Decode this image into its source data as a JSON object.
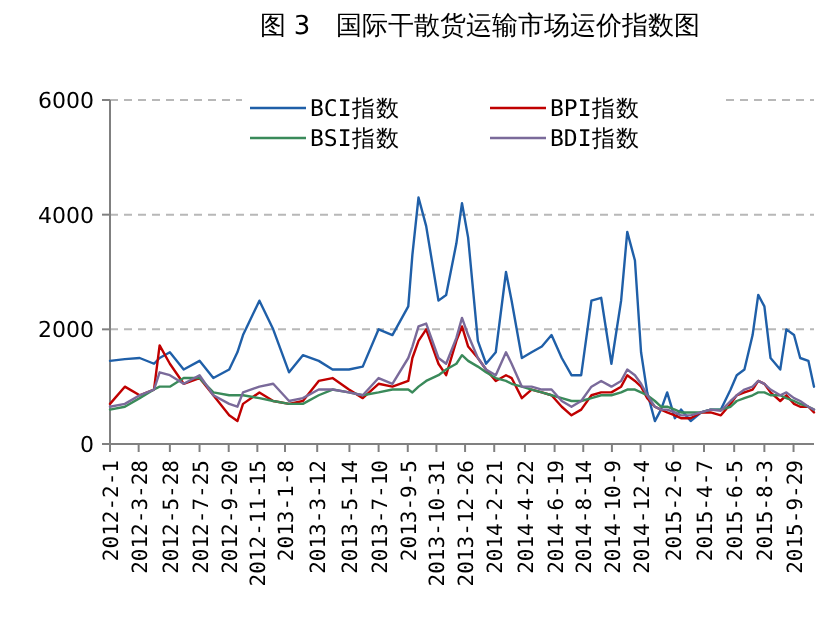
{
  "chart_data": {
    "type": "line",
    "title": "图 3　国际干散货运输市场运价指数图",
    "x": [
      "2012-02-01",
      "2012-03-01",
      "2012-03-30",
      "2012-04-27",
      "2012-05-08",
      "2012-05-28",
      "2012-06-24",
      "2012-07-25",
      "2012-08-21",
      "2012-09-21",
      "2012-10-07",
      "2012-10-18",
      "2012-11-19",
      "2012-12-16",
      "2013-01-16",
      "2013-02-12",
      "2013-03-15",
      "2013-04-11",
      "2013-05-13",
      "2013-06-09",
      "2013-07-10",
      "2013-08-06",
      "2013-09-06",
      "2013-09-14",
      "2013-09-26",
      "2013-10-11",
      "2013-11-04",
      "2013-11-19",
      "2013-12-09",
      "2013-12-20",
      "2014-01-01",
      "2014-01-20",
      "2014-02-05",
      "2014-02-24",
      "2014-03-16",
      "2014-03-27",
      "2014-04-16",
      "2014-05-05",
      "2014-05-25",
      "2014-06-13",
      "2014-07-03",
      "2014-07-22",
      "2014-08-10",
      "2014-08-30",
      "2014-09-18",
      "2014-10-08",
      "2014-10-27",
      "2014-11-08",
      "2014-11-23",
      "2014-12-05",
      "2014-12-17",
      "2015-01-01",
      "2015-01-13",
      "2015-01-25",
      "2015-02-09",
      "2015-02-21",
      "2015-03-12",
      "2015-04-01",
      "2015-04-20",
      "2015-05-10",
      "2015-05-29",
      "2015-06-10",
      "2015-06-25",
      "2015-07-11",
      "2015-07-22",
      "2015-08-03",
      "2015-08-15",
      "2015-09-03",
      "2015-09-15",
      "2015-09-30",
      "2015-10-12",
      "2015-10-28",
      "2015-11-08"
    ],
    "series": [
      {
        "name": "BCI指数",
        "color": "#1f5fa8",
        "values": [
          1450,
          1480,
          1500,
          1400,
          1500,
          1600,
          1300,
          1450,
          1150,
          1300,
          1600,
          1900,
          2500,
          2000,
          1250,
          1550,
          1450,
          1300,
          1300,
          1350,
          2000,
          1900,
          2400,
          3300,
          4300,
          3800,
          2500,
          2600,
          3500,
          4200,
          3600,
          1800,
          1400,
          1600,
          3000,
          2500,
          1500,
          1600,
          1700,
          1900,
          1500,
          1200,
          1200,
          2500,
          2550,
          1400,
          2500,
          3700,
          3200,
          1600,
          900,
          400,
          600,
          900,
          450,
          600,
          400,
          550,
          600,
          600,
          950,
          1200,
          1300,
          1900,
          2600,
          2400,
          1500,
          1300,
          2000,
          1900,
          1500,
          1450,
          1000
        ]
      },
      {
        "name": "BPI指数",
        "color": "#c00000",
        "values": [
          700,
          1000,
          850,
          950,
          1720,
          1400,
          1050,
          1150,
          850,
          500,
          400,
          700,
          900,
          750,
          700,
          750,
          1100,
          1150,
          950,
          800,
          1050,
          1000,
          1100,
          1500,
          1800,
          2000,
          1400,
          1200,
          1800,
          2050,
          1700,
          1500,
          1300,
          1100,
          1200,
          1150,
          800,
          950,
          900,
          850,
          650,
          500,
          600,
          850,
          900,
          900,
          1000,
          1200,
          1100,
          1000,
          800,
          650,
          600,
          550,
          500,
          450,
          450,
          550,
          550,
          500,
          700,
          850,
          900,
          950,
          1100,
          1050,
          900,
          750,
          850,
          700,
          650,
          650,
          550
        ]
      },
      {
        "name": "BSI指数",
        "color": "#3a8a5a",
        "values": [
          600,
          650,
          800,
          950,
          1000,
          1000,
          1150,
          1150,
          900,
          850,
          850,
          850,
          800,
          750,
          700,
          700,
          850,
          950,
          900,
          850,
          900,
          950,
          950,
          900,
          1000,
          1100,
          1200,
          1300,
          1400,
          1550,
          1450,
          1350,
          1250,
          1150,
          1100,
          1050,
          1000,
          950,
          900,
          850,
          800,
          750,
          750,
          800,
          850,
          850,
          900,
          950,
          950,
          900,
          850,
          750,
          650,
          650,
          600,
          550,
          550,
          550,
          600,
          600,
          650,
          750,
          800,
          850,
          900,
          900,
          850,
          850,
          800,
          750,
          700,
          650,
          600
        ]
      },
      {
        "name": "BDI指数",
        "color": "#7a6a9a",
        "values": [
          650,
          700,
          850,
          950,
          1250,
          1200,
          1050,
          1200,
          850,
          700,
          650,
          900,
          1000,
          1050,
          750,
          800,
          950,
          950,
          900,
          850,
          1150,
          1050,
          1500,
          1700,
          2050,
          2100,
          1500,
          1400,
          1850,
          2200,
          1900,
          1500,
          1300,
          1200,
          1600,
          1400,
          1000,
          1000,
          950,
          950,
          750,
          650,
          750,
          1000,
          1100,
          1000,
          1100,
          1300,
          1200,
          1050,
          850,
          650,
          600,
          600,
          550,
          500,
          500,
          550,
          600,
          580,
          750,
          850,
          950,
          1000,
          1100,
          1050,
          950,
          850,
          900,
          800,
          750,
          650,
          600
        ]
      }
    ],
    "xlim": [
      "2012-02-01",
      "2015-11-08"
    ],
    "xticks": [
      {
        "value": "2012-02-01",
        "label": "2012-2-1"
      },
      {
        "value": "2012-03-28",
        "label": "2012-3-28"
      },
      {
        "value": "2012-05-28",
        "label": "2012-5-28"
      },
      {
        "value": "2012-07-25",
        "label": "2012-7-25"
      },
      {
        "value": "2012-09-20",
        "label": "2012-9-20"
      },
      {
        "value": "2012-11-15",
        "label": "2012-11-15"
      },
      {
        "value": "2013-01-08",
        "label": "2013-1-8"
      },
      {
        "value": "2013-03-12",
        "label": "2013-3-12"
      },
      {
        "value": "2013-05-14",
        "label": "2013-5-14"
      },
      {
        "value": "2013-07-10",
        "label": "2013-7-10"
      },
      {
        "value": "2013-09-05",
        "label": "2013-9-5"
      },
      {
        "value": "2013-10-31",
        "label": "2013-10-31"
      },
      {
        "value": "2013-12-26",
        "label": "2013-12-26"
      },
      {
        "value": "2014-02-21",
        "label": "2014-2-21"
      },
      {
        "value": "2014-04-22",
        "label": "2014-4-22"
      },
      {
        "value": "2014-06-19",
        "label": "2014-6-19"
      },
      {
        "value": "2014-08-14",
        "label": "2014-8-14"
      },
      {
        "value": "2014-10-09",
        "label": "2014-10-9"
      },
      {
        "value": "2014-12-04",
        "label": "2014-12-4"
      },
      {
        "value": "2015-02-06",
        "label": "2015-2-6"
      },
      {
        "value": "2015-04-07",
        "label": "2015-4-7"
      },
      {
        "value": "2015-06-05",
        "label": "2015-6-5"
      },
      {
        "value": "2015-08-03",
        "label": "2015-8-3"
      },
      {
        "value": "2015-09-29",
        "label": "2015-9-29"
      }
    ],
    "ylim": [
      0,
      6000
    ],
    "yticks": [
      0,
      2000,
      4000,
      6000
    ],
    "grid": "y",
    "legend": "top",
    "line_style": "solid",
    "marker": "none"
  }
}
